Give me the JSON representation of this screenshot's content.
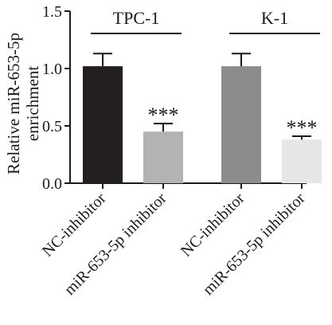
{
  "chart_data": {
    "type": "bar",
    "ylabel_line1": "Relative miR-653-5p",
    "ylabel_line2": "enrichment",
    "ylim": [
      0,
      1.5
    ],
    "yticks": [
      "0.0",
      "0.5",
      "1.0",
      "1.5"
    ],
    "ytick_values": [
      0,
      0.5,
      1.0,
      1.5
    ],
    "groups": [
      {
        "label": "TPC-1",
        "bars": [
          0,
          1
        ]
      },
      {
        "label": "K-1",
        "bars": [
          2,
          3
        ]
      }
    ],
    "bars": [
      {
        "category": "NC-inhibitor",
        "value": 1.02,
        "error": 0.11,
        "color": "#231f20",
        "annotation": ""
      },
      {
        "category": "miR-653-5p inhibitor",
        "value": 0.45,
        "error": 0.07,
        "color": "#b3b3b3",
        "annotation": "***"
      },
      {
        "category": "NC-inhibitor",
        "value": 1.02,
        "error": 0.11,
        "color": "#8c8c8c",
        "annotation": ""
      },
      {
        "category": "miR-653-5p inhibitor",
        "value": 0.38,
        "error": 0.03,
        "color": "#e6e6e6",
        "annotation": "***"
      }
    ]
  }
}
